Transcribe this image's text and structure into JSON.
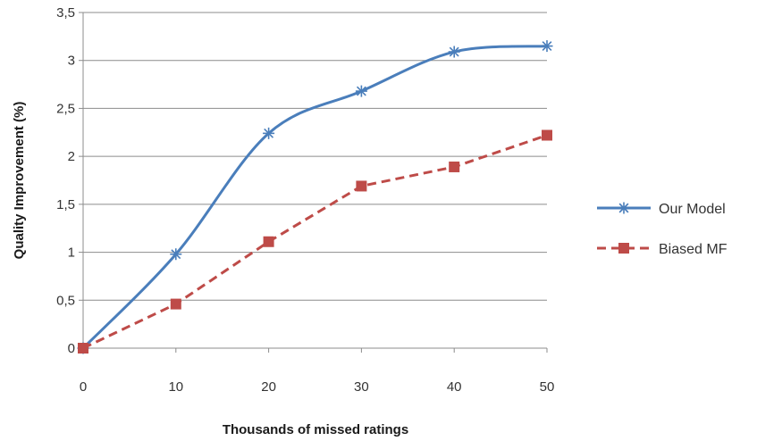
{
  "chart_data": {
    "type": "line",
    "xlabel": "Thousands of missed ratings",
    "ylabel": "Quality Improvement (%)",
    "x": [
      0,
      10,
      20,
      30,
      40,
      50
    ],
    "x_ticks": [
      "0",
      "10",
      "20",
      "30",
      "40",
      "50"
    ],
    "y_ticks": [
      "0",
      "0,5",
      "1",
      "1,5",
      "2",
      "2,5",
      "3",
      "3,5"
    ],
    "xlim": [
      0,
      50
    ],
    "ylim": [
      0,
      3.5
    ],
    "grid": "horizontal",
    "legend_position": "right",
    "series": [
      {
        "name": "Our Model",
        "values": [
          0,
          0.98,
          2.24,
          2.68,
          3.09,
          3.15
        ],
        "color": "#4a7ebb",
        "marker": "asterisk",
        "line_style": "solid-smooth"
      },
      {
        "name": "Biased MF",
        "values": [
          0,
          0.46,
          1.11,
          1.69,
          1.89,
          2.22
        ],
        "color": "#be4b48",
        "marker": "square",
        "line_style": "dashed"
      }
    ]
  }
}
